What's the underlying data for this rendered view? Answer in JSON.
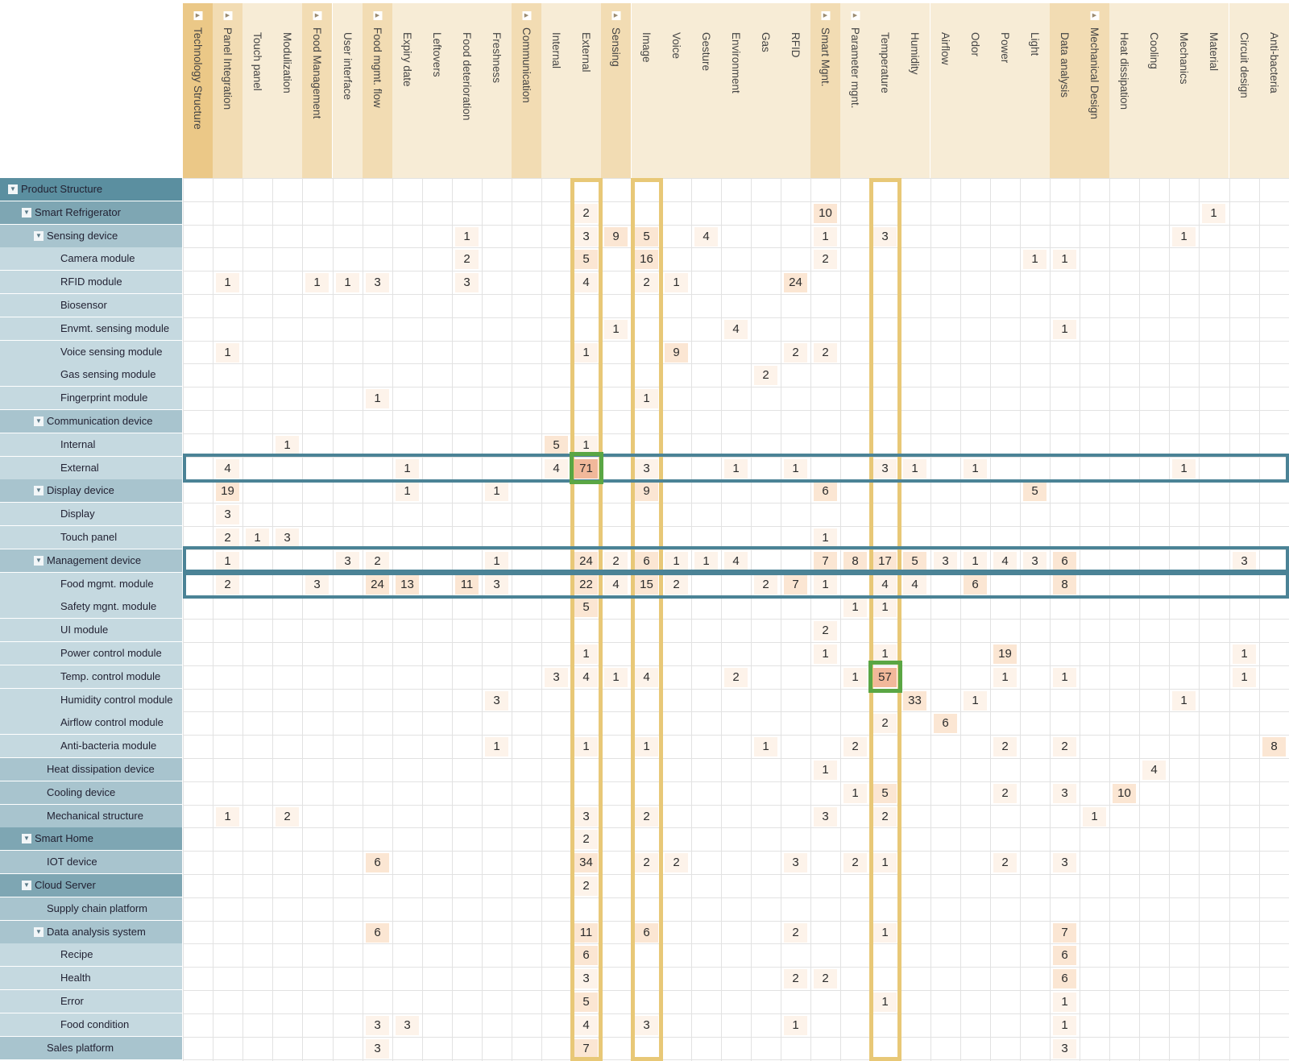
{
  "colors": {
    "col_header_bg_dark": "#ebc887",
    "col_header_bg_mid": "#f2dcb3",
    "col_header_bg_light": "#f7ecd6",
    "row_header_top": "#5b8fa0",
    "row_header_level1": "#7ea6b3",
    "row_header_level2": "#a8c4ce",
    "row_header_leaf": "#c5d9e0",
    "highlight_column_border": "#e8c877",
    "highlight_row_border": "#4b8396",
    "highlight_cell_border": "#5aa644",
    "peak_cell_fill": "#f1b89a",
    "value_fill_light": "#fdf3ea",
    "value_fill_mid": "#fbe6d3"
  },
  "columns": [
    {
      "label": "Technology Structure",
      "level": 0,
      "expander": true
    },
    {
      "label": "Panel Integration",
      "level": 1,
      "expander": true
    },
    {
      "label": "Touch panel",
      "level": 2,
      "expander": false
    },
    {
      "label": "Modulization",
      "level": 2,
      "expander": false
    },
    {
      "label": "Food Management",
      "level": 1,
      "expander": true
    },
    {
      "label": "User interface",
      "level": 2,
      "expander": false
    },
    {
      "label": "Food mgmt. flow",
      "level": 1,
      "expander": true
    },
    {
      "label": "Expiry date",
      "level": 2,
      "expander": false
    },
    {
      "label": "Leftovers",
      "level": 2,
      "expander": false
    },
    {
      "label": "Food deterioration",
      "level": 2,
      "expander": false
    },
    {
      "label": "Freshness",
      "level": 2,
      "expander": false
    },
    {
      "label": "Communication",
      "level": 1,
      "expander": true
    },
    {
      "label": "Internal",
      "level": 2,
      "expander": false
    },
    {
      "label": "External",
      "level": 2,
      "expander": false
    },
    {
      "label": "Sensing",
      "level": 1,
      "expander": true
    },
    {
      "label": "Image",
      "level": 2,
      "expander": false
    },
    {
      "label": "Voice",
      "level": 2,
      "expander": false
    },
    {
      "label": "Gesture",
      "level": 2,
      "expander": false
    },
    {
      "label": "Environment",
      "level": 2,
      "expander": false
    },
    {
      "label": "Gas",
      "level": 2,
      "expander": false
    },
    {
      "label": "RFID",
      "level": 2,
      "expander": false
    },
    {
      "label": "Smart Mgnt.",
      "level": 1,
      "expander": true
    },
    {
      "label": "Parameter mgnt.",
      "level": 2,
      "expander": true
    },
    {
      "label": "Temperature",
      "level": 2,
      "expander": false
    },
    {
      "label": "Humidity",
      "level": 2,
      "expander": false
    },
    {
      "label": "Airflow",
      "level": 2,
      "expander": false
    },
    {
      "label": "Odor",
      "level": 2,
      "expander": false
    },
    {
      "label": "Power",
      "level": 2,
      "expander": false
    },
    {
      "label": "Light",
      "level": 2,
      "expander": false
    },
    {
      "label": "Data analysis",
      "level": 1,
      "expander": false
    },
    {
      "label": "Mechanical Design",
      "level": 1,
      "expander": true
    },
    {
      "label": "Heat dissipation",
      "level": 2,
      "expander": false
    },
    {
      "label": "Cooling",
      "level": 2,
      "expander": false
    },
    {
      "label": "Mechanics",
      "level": 2,
      "expander": false
    },
    {
      "label": "Material",
      "level": 2,
      "expander": false
    },
    {
      "label": "Circuit design",
      "level": 2,
      "expander": false
    },
    {
      "label": "Anti-bacteria",
      "level": 2,
      "expander": false
    }
  ],
  "rows": [
    {
      "label": "Product Structure",
      "level": 0,
      "expander": true,
      "cells": {}
    },
    {
      "label": "Smart Refrigerator",
      "level": 1,
      "expander": true,
      "cells": {
        "13": 2,
        "21": 10,
        "34": 1
      }
    },
    {
      "label": "Sensing device",
      "level": 2,
      "expander": true,
      "cells": {
        "9": 1,
        "13": 3,
        "14": 9,
        "15": 5,
        "17": 4,
        "21": 1,
        "23": 3,
        "33": 1
      }
    },
    {
      "label": "Camera module",
      "level": 3,
      "expander": false,
      "cells": {
        "9": 2,
        "13": 5,
        "15": 16,
        "21": 2,
        "28": 1,
        "29": 1
      }
    },
    {
      "label": "RFID module",
      "level": 3,
      "expander": false,
      "cells": {
        "1": 1,
        "4": 1,
        "5": 1,
        "6": 3,
        "9": 3,
        "13": 4,
        "15": 2,
        "16": 1,
        "20": 24
      }
    },
    {
      "label": "Biosensor",
      "level": 3,
      "expander": false,
      "cells": {}
    },
    {
      "label": "Envmt. sensing module",
      "level": 3,
      "expander": false,
      "cells": {
        "14": 1,
        "18": 4,
        "29": 1
      }
    },
    {
      "label": "Voice sensing module",
      "level": 3,
      "expander": false,
      "cells": {
        "1": 1,
        "13": 1,
        "16": 9,
        "20": 2,
        "21": 2
      }
    },
    {
      "label": "Gas sensing module",
      "level": 3,
      "expander": false,
      "cells": {
        "19": 2
      }
    },
    {
      "label": "Fingerprint module",
      "level": 3,
      "expander": false,
      "cells": {
        "6": 1,
        "15": 1
      }
    },
    {
      "label": "Communication device",
      "level": 2,
      "expander": true,
      "cells": {}
    },
    {
      "label": "Internal",
      "level": 3,
      "expander": false,
      "cells": {
        "3": 1,
        "12": 5,
        "13": 1
      }
    },
    {
      "label": "External",
      "level": 3,
      "expander": false,
      "cells": {
        "1": 4,
        "7": 1,
        "12": 4,
        "13": 71,
        "15": 3,
        "18": 1,
        "20": 1,
        "23": 3,
        "24": 1,
        "26": 1,
        "33": 1
      }
    },
    {
      "label": "Display device",
      "level": 2,
      "expander": true,
      "cells": {
        "1": 19,
        "7": 1,
        "10": 1,
        "15": 9,
        "21": 6,
        "28": 5
      }
    },
    {
      "label": "Display",
      "level": 3,
      "expander": false,
      "cells": {
        "1": 3
      }
    },
    {
      "label": "Touch panel",
      "level": 3,
      "expander": false,
      "cells": {
        "1": 2,
        "2": 1,
        "3": 3,
        "21": 1
      }
    },
    {
      "label": "Management device",
      "level": 2,
      "expander": true,
      "cells": {
        "1": 1,
        "5": 3,
        "6": 2,
        "10": 1,
        "13": 24,
        "14": 2,
        "15": 6,
        "16": 1,
        "17": 1,
        "18": 4,
        "21": 7,
        "22": 8,
        "23": 17,
        "24": 5,
        "25": 3,
        "26": 1,
        "27": 4,
        "28": 3,
        "29": 6,
        "35": 3
      }
    },
    {
      "label": "Food mgmt. module",
      "level": 3,
      "expander": false,
      "cells": {
        "1": 2,
        "4": 3,
        "6": 24,
        "7": 13,
        "9": 11,
        "10": 3,
        "13": 22,
        "14": 4,
        "15": 15,
        "16": 2,
        "19": 2,
        "20": 7,
        "21": 1,
        "23": 4,
        "24": 4,
        "26": 6,
        "29": 8
      }
    },
    {
      "label": "Safety mgnt. module",
      "level": 3,
      "expander": false,
      "cells": {
        "13": 5,
        "22": 1,
        "23": 1
      }
    },
    {
      "label": "UI module",
      "level": 3,
      "expander": false,
      "cells": {
        "21": 2
      }
    },
    {
      "label": "Power control module",
      "level": 3,
      "expander": false,
      "cells": {
        "13": 1,
        "21": 1,
        "23": 1,
        "27": 19,
        "35": 1
      }
    },
    {
      "label": "Temp. control module",
      "level": 3,
      "expander": false,
      "cells": {
        "12": 3,
        "13": 4,
        "14": 1,
        "15": 4,
        "18": 2,
        "22": 1,
        "23": 57,
        "27": 1,
        "29": 1,
        "35": 1
      }
    },
    {
      "label": "Humidity control module",
      "level": 3,
      "expander": false,
      "cells": {
        "10": 3,
        "24": 33,
        "26": 1,
        "33": 1
      }
    },
    {
      "label": "Airflow control module",
      "level": 3,
      "expander": false,
      "cells": {
        "23": 2,
        "25": 6
      }
    },
    {
      "label": "Anti-bacteria module",
      "level": 3,
      "expander": false,
      "cells": {
        "10": 1,
        "13": 1,
        "15": 1,
        "19": 1,
        "22": 2,
        "27": 2,
        "29": 2,
        "36": 8
      }
    },
    {
      "label": "Heat dissipation device",
      "level": 2,
      "expander": false,
      "cells": {
        "21": 1,
        "32": 4
      }
    },
    {
      "label": "Cooling device",
      "level": 2,
      "expander": false,
      "cells": {
        "22": 1,
        "23": 5,
        "27": 2,
        "29": 3,
        "31": 10
      }
    },
    {
      "label": "Mechanical structure",
      "level": 2,
      "expander": false,
      "cells": {
        "1": 1,
        "3": 2,
        "13": 3,
        "15": 2,
        "21": 3,
        "23": 2,
        "30": 1
      }
    },
    {
      "label": "Smart Home",
      "level": 1,
      "expander": true,
      "cells": {
        "13": 2
      }
    },
    {
      "label": "IOT device",
      "level": 2,
      "expander": false,
      "cells": {
        "6": 6,
        "13": 34,
        "15": 2,
        "16": 2,
        "20": 3,
        "22": 2,
        "23": 1,
        "27": 2,
        "29": 3
      }
    },
    {
      "label": "Cloud Server",
      "level": 1,
      "expander": true,
      "cells": {
        "13": 2
      }
    },
    {
      "label": "Supply chain platform",
      "level": 2,
      "expander": false,
      "cells": {}
    },
    {
      "label": "Data analysis system",
      "level": 2,
      "expander": true,
      "cells": {
        "6": 6,
        "13": 11,
        "15": 6,
        "20": 2,
        "23": 1,
        "29": 7
      }
    },
    {
      "label": "Recipe",
      "level": 3,
      "expander": false,
      "cells": {
        "13": 6,
        "29": 6
      }
    },
    {
      "label": "Health",
      "level": 3,
      "expander": false,
      "cells": {
        "13": 3,
        "20": 2,
        "21": 2,
        "29": 6
      }
    },
    {
      "label": "Error",
      "level": 3,
      "expander": false,
      "cells": {
        "13": 5,
        "23": 1,
        "29": 1
      }
    },
    {
      "label": "Food condition",
      "level": 3,
      "expander": false,
      "cells": {
        "6": 3,
        "7": 3,
        "13": 4,
        "15": 3,
        "20": 1,
        "29": 1
      }
    },
    {
      "label": "Sales platform",
      "level": 2,
      "expander": false,
      "cells": {
        "6": 3,
        "13": 7,
        "29": 3
      }
    }
  ],
  "highlighted_columns": [
    "External",
    "Image",
    "Temperature"
  ],
  "highlighted_rows": [
    "External",
    "Management device",
    "Food mgmt. module"
  ],
  "highlighted_cells": [
    {
      "row": "External",
      "column": "External",
      "value": 71
    },
    {
      "row": "Temp. control module",
      "column": "Temperature",
      "value": 57
    }
  ]
}
